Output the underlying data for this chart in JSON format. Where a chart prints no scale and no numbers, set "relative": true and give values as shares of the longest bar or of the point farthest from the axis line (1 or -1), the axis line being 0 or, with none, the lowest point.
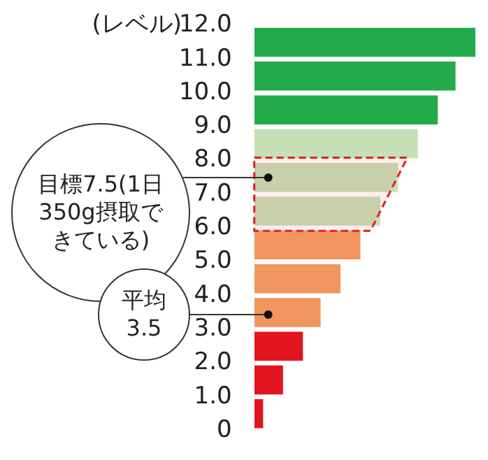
{
  "chart_data": {
    "type": "bar",
    "orientation": "horizontal",
    "relative": true,
    "ylabel": "(レベル)",
    "x": [
      0.5,
      1.5,
      2.5,
      3.5,
      4.5,
      5.5,
      6.5,
      7.5,
      8.5,
      9.5,
      10.5,
      11.5
    ],
    "values": [
      0.04,
      0.13,
      0.22,
      0.3,
      0.39,
      0.48,
      0.57,
      0.65,
      0.74,
      0.83,
      0.91,
      1
    ],
    "colors": [
      "#e3141e",
      "#e3141e",
      "#e3141e",
      "#f0965e",
      "#f0965e",
      "#f0965e",
      "#c5dfb7",
      "#c5dfb7",
      "#c5dfb7",
      "#22ab4a",
      "#22ab4a",
      "#22ab4a"
    ],
    "ylim": [
      0,
      12
    ],
    "yticks": [
      {
        "value": 0,
        "label": "0"
      },
      {
        "value": 1,
        "label": "1.0"
      },
      {
        "value": 2,
        "label": "2.0"
      },
      {
        "value": 3,
        "label": "3.0"
      },
      {
        "value": 4,
        "label": "4.0"
      },
      {
        "value": 5,
        "label": "5.0"
      },
      {
        "value": 6,
        "label": "6.0"
      },
      {
        "value": 7,
        "label": "7.0"
      },
      {
        "value": 8,
        "label": "8.0"
      },
      {
        "value": 9,
        "label": "9.0"
      },
      {
        "value": 10,
        "label": "10.0"
      },
      {
        "value": 11,
        "label": "11.0"
      },
      {
        "value": 12,
        "label": "12.0"
      }
    ],
    "bands": [
      {
        "axis": "y",
        "from": 6,
        "to": 8,
        "color": "#e02020"
      }
    ],
    "annotations": [
      "目標7.5(1日350g摂取できている)",
      "平均3.5"
    ]
  }
}
